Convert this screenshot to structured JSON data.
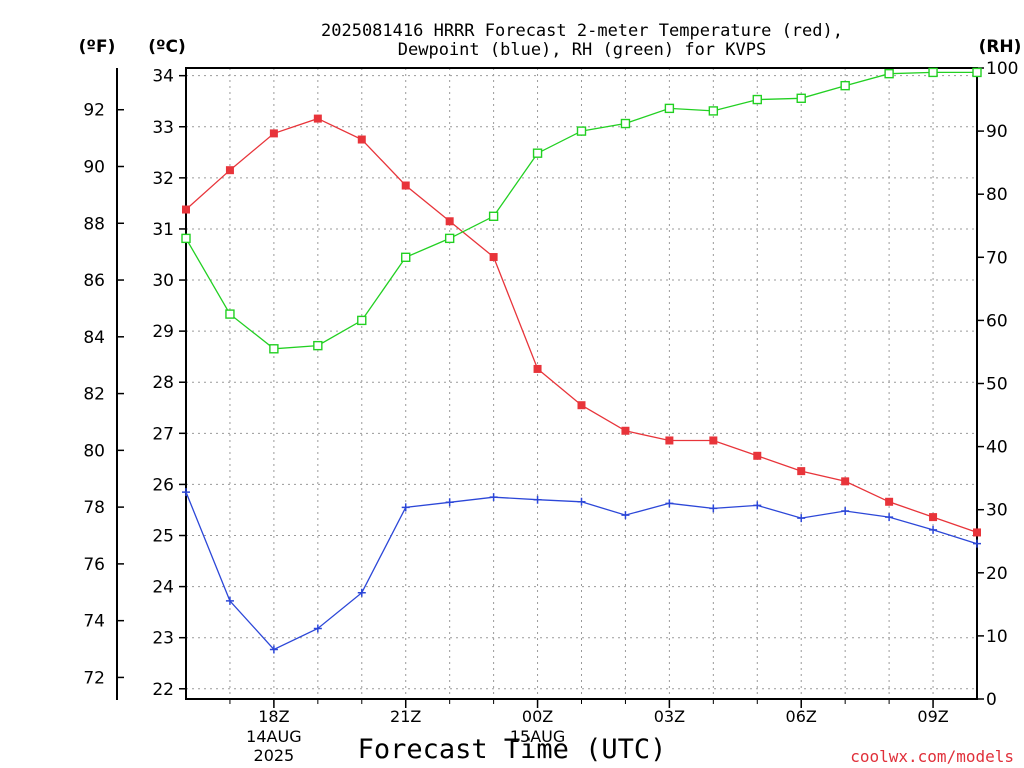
{
  "chart_data": {
    "type": "line",
    "title_line1": "2025081416 HRRR Forecast 2-meter Temperature (red),",
    "title_line2": "Dewpoint (blue), RH (green) for KVPS",
    "xlabel": "Forecast Time (UTC)",
    "left_unit_f": "(ºF)",
    "left_unit_c": "(ºC)",
    "right_unit": "(RH)",
    "watermark": "coolwx.com/models",
    "x_range_hours": [
      0,
      18
    ],
    "x_ticks": [
      {
        "hour": 2,
        "label": "18Z",
        "sub1": "14AUG",
        "sub2": "2025"
      },
      {
        "hour": 5,
        "label": "21Z",
        "sub1": "",
        "sub2": ""
      },
      {
        "hour": 8,
        "label": "00Z",
        "sub1": "15AUG",
        "sub2": ""
      },
      {
        "hour": 11,
        "label": "03Z",
        "sub1": "",
        "sub2": ""
      },
      {
        "hour": 14,
        "label": "06Z",
        "sub1": "",
        "sub2": ""
      },
      {
        "hour": 17,
        "label": "09Z",
        "sub1": "",
        "sub2": ""
      }
    ],
    "celsius_axis": {
      "range": [
        21.8,
        34.15
      ],
      "ticks": [
        22,
        23,
        24,
        25,
        26,
        27,
        28,
        29,
        30,
        31,
        32,
        33,
        34
      ]
    },
    "fahrenheit_axis": {
      "ticks": [
        72,
        74,
        76,
        78,
        80,
        82,
        84,
        86,
        88,
        90,
        92
      ]
    },
    "rh_axis": {
      "range": [
        0,
        100
      ],
      "ticks": [
        0,
        10,
        20,
        30,
        40,
        50,
        60,
        70,
        80,
        90,
        100
      ]
    },
    "grid": true,
    "series": [
      {
        "name": "Temperature",
        "axis": "celsius",
        "color": "#e8343a",
        "marker": "filled-square",
        "hours": [
          0,
          1,
          2,
          3,
          4,
          5,
          6,
          7,
          8,
          9,
          10,
          11,
          12,
          13,
          14,
          15,
          16,
          17,
          18
        ],
        "values": [
          31.38,
          32.15,
          32.87,
          33.16,
          32.75,
          31.85,
          31.15,
          30.45,
          28.26,
          27.55,
          27.05,
          26.86,
          26.86,
          26.56,
          26.26,
          26.06,
          25.66,
          25.36,
          25.06
        ]
      },
      {
        "name": "Dewpoint",
        "axis": "celsius",
        "color": "#2c47d8",
        "marker": "plus",
        "hours": [
          0,
          1,
          2,
          3,
          4,
          5,
          6,
          7,
          8,
          9,
          10,
          11,
          12,
          13,
          14,
          15,
          16,
          17,
          18
        ],
        "values": [
          25.85,
          23.72,
          22.77,
          23.18,
          23.88,
          25.55,
          25.65,
          25.75,
          25.7,
          25.66,
          25.4,
          25.63,
          25.53,
          25.59,
          25.34,
          25.48,
          25.36,
          25.11,
          24.84
        ]
      },
      {
        "name": "RH",
        "axis": "rh",
        "color": "#22d022",
        "marker": "open-square",
        "hours": [
          0,
          1,
          2,
          3,
          4,
          5,
          6,
          7,
          8,
          9,
          10,
          11,
          12,
          13,
          14,
          15,
          16,
          17,
          18
        ],
        "values": [
          73,
          61,
          55.5,
          56,
          60,
          70,
          73,
          76.5,
          86.5,
          90,
          91.2,
          93.6,
          93.2,
          95,
          95.2,
          97.2,
          99.1,
          99.3,
          99.3
        ]
      }
    ]
  }
}
